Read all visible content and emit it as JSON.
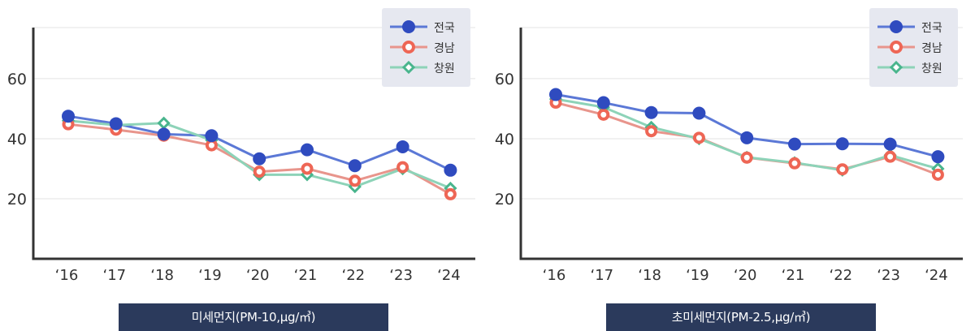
{
  "chart_data": [
    {
      "type": "line",
      "title": "미세먼지(PM-10,μg/㎥)",
      "categories": [
        "‘16",
        "‘17",
        "‘18",
        "‘19",
        "‘20",
        "‘21",
        "‘22",
        "‘23",
        "‘24"
      ],
      "yticks": [
        20,
        40,
        60
      ],
      "ylim": [
        0,
        77
      ],
      "grid": true,
      "legend_position": "top-right",
      "series": [
        {
          "name": "전국",
          "values": [
            47.5,
            45,
            41.5,
            41,
            33.3,
            36.3,
            31,
            37.3,
            29.5
          ],
          "color": "#5b78d6",
          "marker_color": "#2f4bbf",
          "marker": "circle"
        },
        {
          "name": "경남",
          "values": [
            44.8,
            43,
            41,
            37.8,
            29,
            30,
            26,
            30.5,
            21.5
          ],
          "color": "#e8958c",
          "marker_color": "#ee6655",
          "marker": "ring"
        },
        {
          "name": "창원",
          "values": [
            46,
            44.5,
            45.2,
            39.5,
            28,
            28,
            24,
            30,
            23.5
          ],
          "color": "#8dd3b8",
          "marker_color": "#49b58d",
          "marker": "diamond"
        }
      ]
    },
    {
      "type": "line",
      "title": "초미세먼지(PM-2.5,μg/㎥)",
      "categories": [
        "‘16",
        "‘17",
        "‘18",
        "‘19",
        "‘20",
        "‘21",
        "‘22",
        "‘23",
        "‘24"
      ],
      "yticks": [
        20,
        40,
        60
      ],
      "ylim": [
        0,
        77
      ],
      "grid": true,
      "legend_position": "top-right",
      "series": [
        {
          "name": "전국",
          "values": [
            54.7,
            52,
            48.7,
            48.5,
            40.3,
            38.2,
            38.3,
            38.2,
            34
          ],
          "color": "#5b78d6",
          "marker_color": "#2f4bbf",
          "marker": "circle"
        },
        {
          "name": "경남",
          "values": [
            52,
            48,
            42.5,
            40.3,
            33.7,
            31.8,
            29.8,
            34,
            28
          ],
          "color": "#e8958c",
          "marker_color": "#ee6655",
          "marker": "ring"
        },
        {
          "name": "창원",
          "values": [
            53.2,
            50.5,
            43.8,
            40,
            33.8,
            32,
            29.5,
            34.5,
            30
          ],
          "color": "#8dd3b8",
          "marker_color": "#49b58d",
          "marker": "diamond"
        }
      ]
    }
  ]
}
